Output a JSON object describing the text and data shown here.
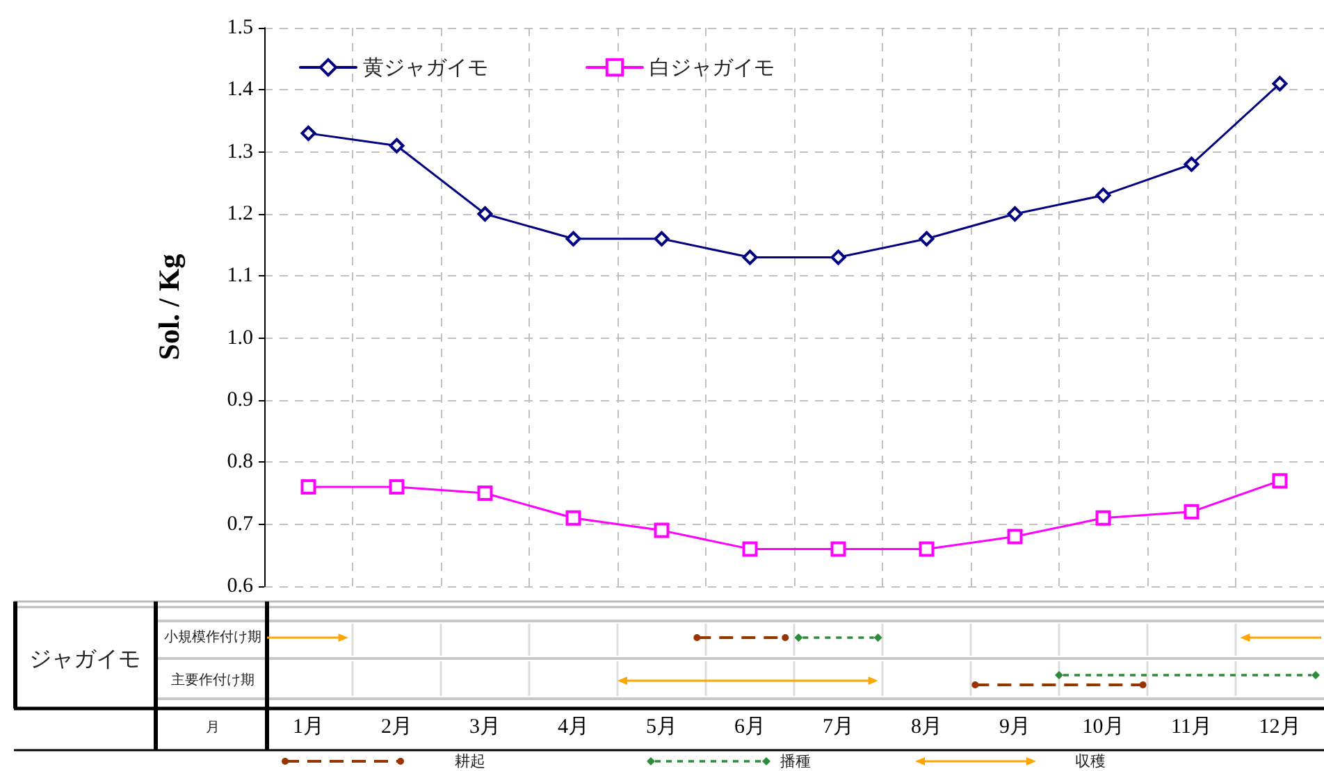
{
  "chart_data": [
    {
      "type": "line",
      "ylabel": "Sol. / Kg",
      "categories": [
        "1月",
        "2月",
        "3月",
        "4月",
        "5月",
        "6月",
        "7月",
        "8月",
        "9月",
        "10月",
        "11月",
        "12月"
      ],
      "series": [
        {
          "name": "黄ジャガイモ",
          "color": "#000080",
          "marker": "diamond",
          "values": [
            1.33,
            1.31,
            1.2,
            1.16,
            1.16,
            1.13,
            1.13,
            1.16,
            1.2,
            1.23,
            1.28,
            1.41
          ]
        },
        {
          "name": "白ジャガイモ",
          "color": "#ff00ff",
          "marker": "square",
          "values": [
            0.76,
            0.76,
            0.75,
            0.71,
            0.69,
            0.66,
            0.66,
            0.66,
            0.68,
            0.71,
            0.72,
            0.77
          ]
        }
      ],
      "ylim": [
        0.6,
        1.5
      ],
      "yticks": [
        0.6,
        0.7,
        0.8,
        0.9,
        {
          "value": 1,
          "label": "1.0"
        },
        1.1,
        1.2,
        1.3,
        1.4,
        1.5
      ],
      "grid": true,
      "legend": "top left",
      "line_style": "solid"
    },
    {
      "type": "other",
      "annotations": [
        "ジャガイモ",
        "小規模作付け期",
        "主要作付け期",
        "月",
        "耕起",
        "播種",
        "収穫"
      ]
    }
  ]
}
